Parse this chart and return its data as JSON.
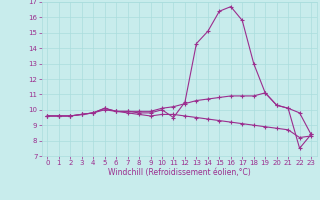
{
  "x": [
    0,
    1,
    2,
    3,
    4,
    5,
    6,
    7,
    8,
    9,
    10,
    11,
    12,
    13,
    14,
    15,
    16,
    17,
    18,
    19,
    20,
    21,
    22,
    23
  ],
  "line1": [
    9.6,
    9.6,
    9.6,
    9.7,
    9.8,
    10.1,
    9.9,
    9.9,
    9.8,
    9.8,
    10.0,
    9.5,
    10.5,
    14.3,
    15.1,
    16.4,
    16.7,
    15.8,
    13.0,
    11.1,
    10.3,
    10.1,
    7.5,
    8.4
  ],
  "line2": [
    9.6,
    9.6,
    9.6,
    9.7,
    9.8,
    10.1,
    9.9,
    9.9,
    9.9,
    9.9,
    10.1,
    10.2,
    10.4,
    10.6,
    10.7,
    10.8,
    10.9,
    10.9,
    10.9,
    11.1,
    10.3,
    10.1,
    9.8,
    8.4
  ],
  "line3": [
    9.6,
    9.6,
    9.6,
    9.7,
    9.8,
    10.0,
    9.9,
    9.8,
    9.7,
    9.6,
    9.7,
    9.7,
    9.6,
    9.5,
    9.4,
    9.3,
    9.2,
    9.1,
    9.0,
    8.9,
    8.8,
    8.7,
    8.2,
    8.3
  ],
  "line_color": "#9B2D8E",
  "bg_color": "#C8ECEC",
  "grid_color": "#AADDDD",
  "xlabel": "Windchill (Refroidissement éolien,°C)",
  "ylim": [
    7,
    17
  ],
  "xlim": [
    -0.5,
    23.5
  ],
  "yticks": [
    7,
    8,
    9,
    10,
    11,
    12,
    13,
    14,
    15,
    16,
    17
  ],
  "xticks": [
    0,
    1,
    2,
    3,
    4,
    5,
    6,
    7,
    8,
    9,
    10,
    11,
    12,
    13,
    14,
    15,
    16,
    17,
    18,
    19,
    20,
    21,
    22,
    23
  ],
  "marker": "+",
  "tick_fontsize": 5.0,
  "xlabel_fontsize": 5.5,
  "lw": 0.8,
  "ms": 2.5
}
